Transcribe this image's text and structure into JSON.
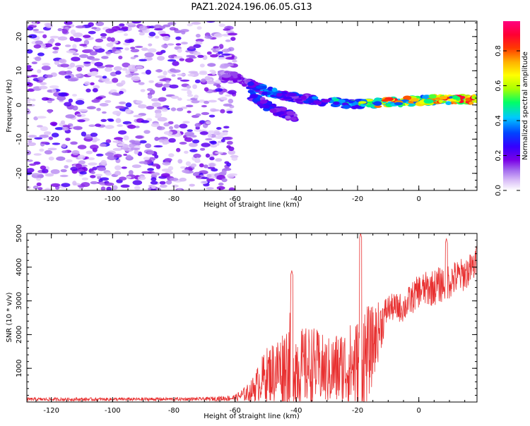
{
  "title": "PAZ1.2024.196.06.05.G13",
  "chart_data": [
    {
      "type": "heatmap",
      "xlabel": "Height of straight line (km)",
      "ylabel": "Frequency (Hz)",
      "xlim": [
        -128,
        19
      ],
      "ylim": [
        -25,
        24.5
      ],
      "xticks": [
        -120,
        -100,
        -80,
        -60,
        -40,
        -20,
        0
      ],
      "yticks": [
        -20,
        -10,
        0,
        10,
        20
      ],
      "colorbar": {
        "label": "Normalized spectral amplitude",
        "range": [
          0,
          0.97
        ],
        "ticks": [
          0.0,
          0.2,
          0.4,
          0.6,
          0.8
        ],
        "colormap": [
          "#ffffff",
          "#d9bdf7",
          "#a36aee",
          "#7a00e6",
          "#3300ff",
          "#0044ff",
          "#00c8ff",
          "#00ff66",
          "#a8ff00",
          "#ffff00",
          "#ffb000",
          "#ff3a00",
          "#ff0033",
          "#ff0080"
        ]
      },
      "ridge": {
        "x": [
          -65,
          -60,
          -55,
          -50,
          -45,
          -40,
          -35,
          -30,
          -25,
          -20,
          -15,
          -10,
          -5,
          0,
          5,
          10,
          15,
          19
        ],
        "frequency": [
          9,
          8,
          6,
          4,
          3,
          2,
          1.5,
          1,
          0.5,
          0.3,
          0.5,
          0.7,
          1,
          1.3,
          1.5,
          1.6,
          1.6,
          1.5
        ],
        "amplitude": [
          0.2,
          0.25,
          0.35,
          0.45,
          0.4,
          0.35,
          0.4,
          0.45,
          0.5,
          0.6,
          0.7,
          0.9,
          0.8,
          0.75,
          0.8,
          0.85,
          0.9,
          0.85
        ]
      },
      "secondary_branch": {
        "x": [
          -55,
          -50,
          -45,
          -40
        ],
        "frequency": [
          3,
          0,
          -2,
          -4
        ],
        "amplitude": [
          0.3,
          0.3,
          0.25,
          0.2
        ]
      },
      "noise_region_x": [
        -128,
        -60
      ],
      "noise_amplitude_range": [
        0.05,
        0.3
      ]
    },
    {
      "type": "line",
      "xlabel": "Height of straight line (km)",
      "ylabel": "SNR (10 * v/v)",
      "xlim": [
        -128,
        19
      ],
      "ylim": [
        0,
        5000
      ],
      "xticks": [
        -120,
        -100,
        -80,
        -60,
        -40,
        -20,
        0
      ],
      "yticks": [
        1000,
        2000,
        3000,
        4000,
        5000
      ],
      "color": "#e83030",
      "series_envelope": {
        "x": [
          -128,
          -100,
          -70,
          -60,
          -55,
          -50,
          -45,
          -42,
          -38,
          -35,
          -30,
          -25,
          -20,
          -18,
          -16,
          -10,
          -5,
          0,
          5,
          10,
          15,
          19
        ],
        "mean": [
          80,
          80,
          90,
          120,
          300,
          800,
          1000,
          1200,
          1000,
          1100,
          900,
          1000,
          1100,
          1300,
          1500,
          2800,
          2800,
          3300,
          3400,
          3600,
          3800,
          4100
        ],
        "amplitude": [
          50,
          50,
          50,
          100,
          300,
          800,
          1100,
          1500,
          1200,
          1200,
          1000,
          1200,
          1400,
          1800,
          1300,
          400,
          450,
          500,
          550,
          550,
          500,
          450
        ]
      },
      "peaks": [
        {
          "x": -41.5,
          "y": 3900
        },
        {
          "x": -19,
          "y": 5000
        },
        {
          "x": 9,
          "y": 4850
        },
        {
          "x": 19,
          "y": 4650
        }
      ]
    }
  ]
}
